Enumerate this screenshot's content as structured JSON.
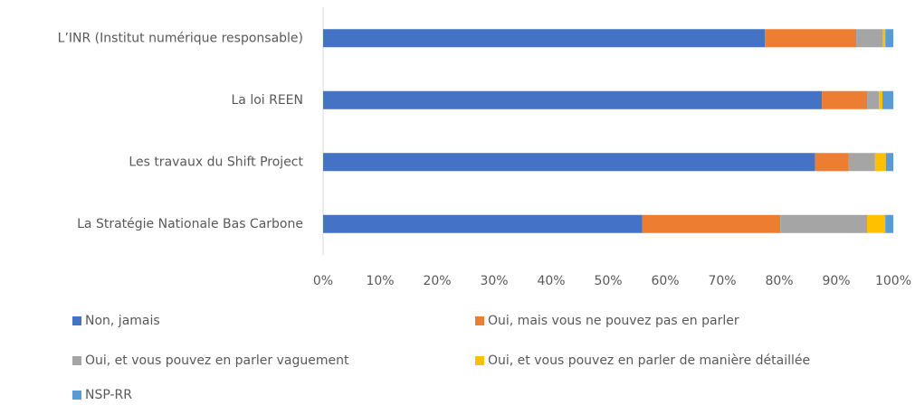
{
  "chart_data": {
    "type": "bar",
    "orientation": "horizontal",
    "stacked": true,
    "categories": [
      "L’INR (Institut numérique responsable)",
      "La loi REEN",
      "Les travaux du Shift Project",
      "La Stratégie Nationale Bas Carbone"
    ],
    "series": [
      {
        "name": "Non, jamais",
        "color": "#4472c4",
        "values": [
          77.5,
          87.5,
          86.3,
          56
        ]
      },
      {
        "name": "Oui, mais vous ne pouvez pas en parler",
        "color": "#ed7d31",
        "values": [
          16,
          7.9,
          5.9,
          24.2
        ]
      },
      {
        "name": "Oui, et vous pouvez en parler vaguement",
        "color": "#a5a5a5",
        "values": [
          4.7,
          2.1,
          4.6,
          15.2
        ]
      },
      {
        "name": "Oui, et vous pouvez en parler de manière détaillée",
        "color": "#ffc000",
        "values": [
          0.4,
          0.6,
          1.9,
          3.2
        ]
      },
      {
        "name": "NSP-RR",
        "color": "#5b9bd5",
        "values": [
          1.4,
          1.9,
          1.3,
          1.4
        ]
      }
    ],
    "xlim": [
      0,
      100
    ],
    "xticks": [
      {
        "value": 0,
        "label": "0%"
      },
      {
        "value": 10,
        "label": "10%"
      },
      {
        "value": 20,
        "label": "20%"
      },
      {
        "value": 30,
        "label": "30%"
      },
      {
        "value": 40,
        "label": "40%"
      },
      {
        "value": 50,
        "label": "50%"
      },
      {
        "value": 60,
        "label": "60%"
      },
      {
        "value": 70,
        "label": "70%"
      },
      {
        "value": 80,
        "label": "80%"
      },
      {
        "value": 90,
        "label": "90%"
      },
      {
        "value": 100,
        "label": "100%"
      }
    ],
    "legend": "bottom"
  }
}
